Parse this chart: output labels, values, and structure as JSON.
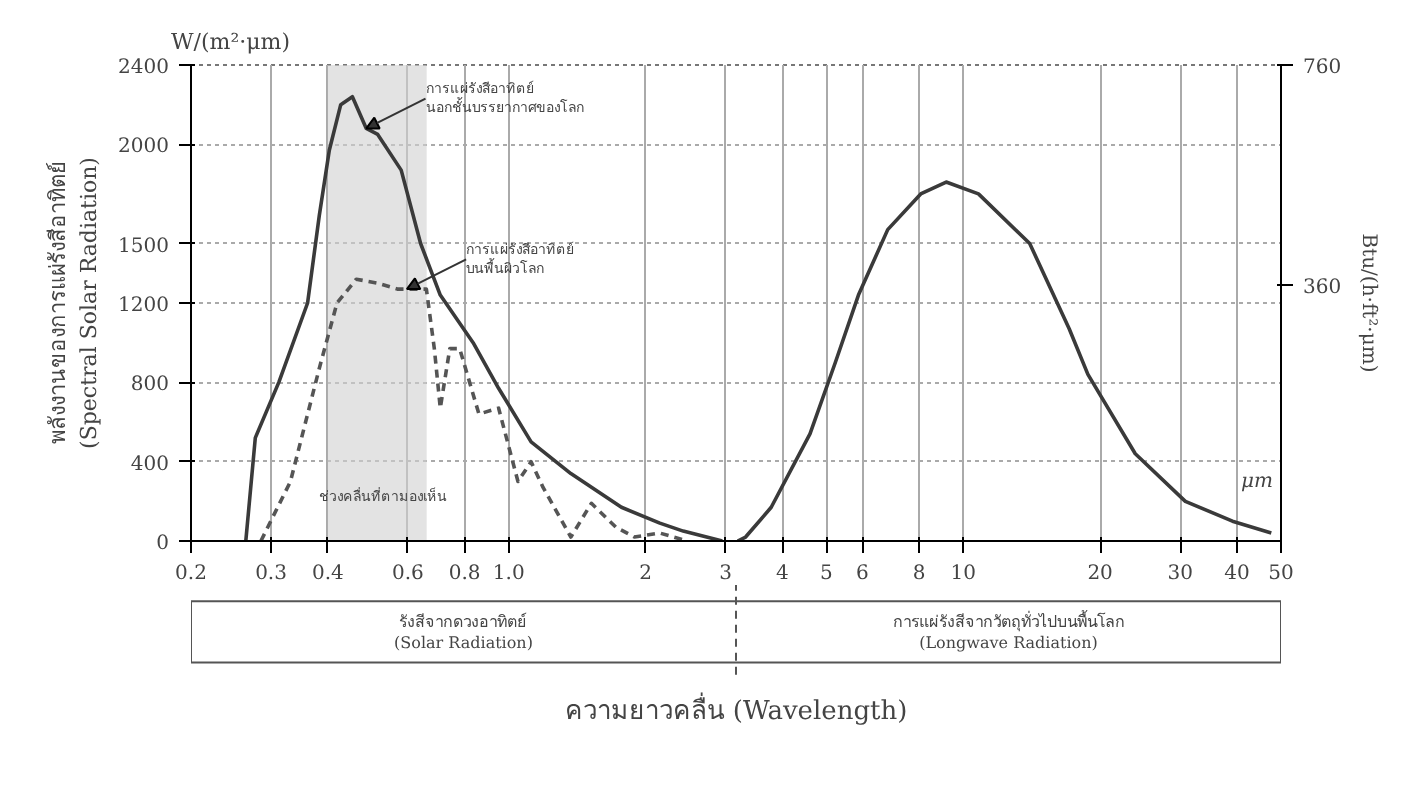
{
  "chart_data": {
    "type": "line",
    "ylabel": "พลังงานของการแผ่รังสีอาทิตย์\n(Spectral Solar Radiation)",
    "y2label": "Btu/(h·ft²·μm)",
    "xlabel": "ความยาวคลื่น (Wavelength)",
    "xlim": [
      0.2,
      50
    ],
    "log": "x",
    "xticks": [
      0.2,
      0.3,
      0.4,
      0.6,
      0.8,
      {
        "value": 1,
        "label": "1.0"
      },
      2,
      3,
      4,
      5,
      6,
      8,
      10,
      20,
      30,
      40,
      50
    ],
    "ylim": [
      0,
      2400
    ],
    "yticks": [
      0,
      400,
      800,
      1200,
      1500,
      2000,
      2400
    ],
    "y2lim": [
      -105,
      760
    ],
    "y2ticks": [
      360,
      760
    ],
    "grid": true,
    "series": [
      {
        "color": "#3a3a3a",
        "line_style": "solid",
        "x": [
          0.264,
          0.277,
          0.312,
          0.361,
          0.383,
          0.403,
          0.427,
          0.453,
          0.486,
          0.515,
          0.58,
          0.64,
          0.707,
          0.835,
          0.95,
          1.12,
          1.37,
          1.77,
          2.15,
          2.42,
          2.95
        ],
        "values": [
          0,
          520,
          800,
          1200,
          1640,
          1970,
          2200,
          2240,
          2080,
          2050,
          1870,
          1500,
          1240,
          1000,
          770,
          500,
          340,
          170,
          90,
          50,
          0
        ]
      },
      {
        "color": "#555555",
        "line_style": "dashed",
        "x": [
          0.285,
          0.331,
          0.383,
          0.419,
          0.462,
          0.515,
          0.569,
          0.659,
          0.686,
          0.707,
          0.742,
          0.78,
          0.86,
          0.95,
          1.048,
          1.12,
          1.19,
          1.37,
          1.52,
          1.72,
          1.89,
          2.15,
          2.47
        ],
        "values": [
          0,
          300,
          870,
          1200,
          1320,
          1300,
          1270,
          1270,
          970,
          670,
          970,
          970,
          640,
          670,
          300,
          400,
          270,
          20,
          190,
          70,
          20,
          40,
          0
        ]
      },
      {
        "color": "#3a3a3a",
        "line_style": "solid",
        "x": [
          3.19,
          3.32,
          3.78,
          4.6,
          5.23,
          5.88,
          6.82,
          8.06,
          9.17,
          10.8,
          14,
          17.1,
          18.8,
          23.9,
          30.8,
          39.1,
          47.6
        ],
        "values": [
          0,
          20,
          170,
          540,
          900,
          1240,
          1570,
          1750,
          1810,
          1750,
          1500,
          1070,
          840,
          440,
          200,
          100,
          40
        ]
      }
    ],
    "bands": [
      {
        "axis": "x",
        "from": 0.4,
        "to": 0.66,
        "label": "ช่วงคลื่นที่ตามองเห็น",
        "color": "#d0d0d0"
      }
    ],
    "annotations": [
      {
        "text": "การแผ่รังสีอาทิตย์\nนอกชั้นบรรยากาศของโลก",
        "x": 0.486,
        "y": 2080
      },
      {
        "text": "การแผ่รังสีอาทิตย์\nบนพื้นผิวโลก",
        "x": 0.597,
        "y": 1270
      },
      "W/(m²·μm)",
      "μm",
      "รังสีจากดวงอาทิตย์\n(Solar Radiation)",
      "การแผ่รังสีจากวัตถุทั่วไปบนพื้นโลก\n(Longwave Radiation)"
    ]
  }
}
